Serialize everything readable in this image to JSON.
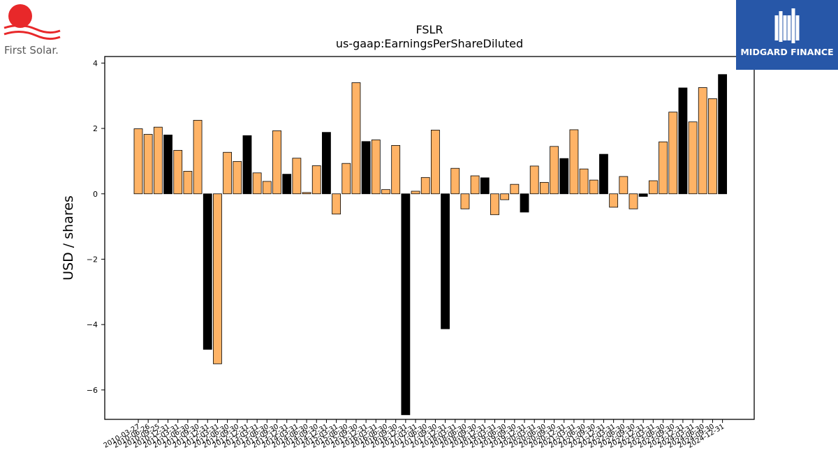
{
  "logos": {
    "left": {
      "name": "first-solar-logo",
      "text": "First Solar."
    },
    "right": {
      "name": "midgard-finance-logo",
      "text": "MIDGARD FINANCE"
    }
  },
  "chart_data": {
    "type": "bar",
    "title": "FSLR",
    "subtitle": "us-gaap:EarningsPerShareDiluted",
    "xlabel": "",
    "ylabel": "USD / shares",
    "ylim": [
      -6.9,
      4.2
    ],
    "yticks": [
      -6,
      -4,
      -2,
      0,
      2,
      4
    ],
    "grid": false,
    "colors": {
      "quarter": "#ffb366",
      "annual": "#000000",
      "edge": "#000000"
    },
    "categories": [
      "2010-03-27",
      "2010-06-26",
      "2010-09-25",
      "2010-12-31",
      "2011-03-31",
      "2011-06-30",
      "2011-09-30",
      "2011-12-31",
      "2012-03-31",
      "2012-06-30",
      "2012-09-30",
      "2012-12-31",
      "2013-03-31",
      "2013-06-30",
      "2013-09-30",
      "2013-12-31",
      "2014-03-31",
      "2014-06-30",
      "2014-09-30",
      "2014-12-31",
      "2015-03-31",
      "2015-06-30",
      "2015-09-30",
      "2015-12-31",
      "2016-03-31",
      "2016-06-30",
      "2016-09-30",
      "2016-12-31",
      "2017-03-31",
      "2017-06-30",
      "2017-09-30",
      "2017-12-31",
      "2018-03-31",
      "2018-06-30",
      "2018-09-30",
      "2018-12-31",
      "2019-03-31",
      "2019-06-30",
      "2019-09-30",
      "2019-12-31",
      "2020-03-31",
      "2020-06-30",
      "2020-09-30",
      "2020-12-31",
      "2021-03-31",
      "2021-06-30",
      "2021-09-30",
      "2021-12-31",
      "2022-03-31",
      "2022-06-30",
      "2022-09-30",
      "2022-12-31",
      "2023-03-31",
      "2023-06-30",
      "2023-09-30",
      "2023-12-31",
      "2024-03-31",
      "2024-06-30",
      "2024-09-30",
      "2024-12-31"
    ],
    "values": [
      1.99,
      1.82,
      2.04,
      1.8,
      1.33,
      0.69,
      2.25,
      -4.76,
      -5.2,
      1.27,
      0.99,
      1.78,
      0.64,
      0.38,
      1.93,
      0.6,
      1.09,
      0.04,
      0.86,
      1.88,
      -0.62,
      0.93,
      3.4,
      1.6,
      1.65,
      0.13,
      1.48,
      -6.76,
      0.08,
      0.5,
      1.95,
      -4.13,
      0.78,
      -0.46,
      0.55,
      0.49,
      -0.64,
      -0.18,
      0.29,
      -0.56,
      0.85,
      0.35,
      1.45,
      1.08,
      1.96,
      0.76,
      0.42,
      1.21,
      -0.41,
      0.53,
      -0.46,
      -0.08,
      0.4,
      1.59,
      2.5,
      3.24,
      2.2,
      3.25,
      2.91,
      3.65
    ],
    "annual": [
      false,
      false,
      false,
      true,
      false,
      false,
      false,
      true,
      false,
      false,
      false,
      true,
      false,
      false,
      false,
      true,
      false,
      false,
      false,
      true,
      false,
      false,
      false,
      true,
      false,
      false,
      false,
      true,
      false,
      false,
      false,
      true,
      false,
      false,
      false,
      true,
      false,
      false,
      false,
      true,
      false,
      false,
      false,
      true,
      false,
      false,
      false,
      true,
      false,
      false,
      false,
      true,
      false,
      false,
      false,
      true,
      false,
      false,
      false,
      true
    ]
  }
}
